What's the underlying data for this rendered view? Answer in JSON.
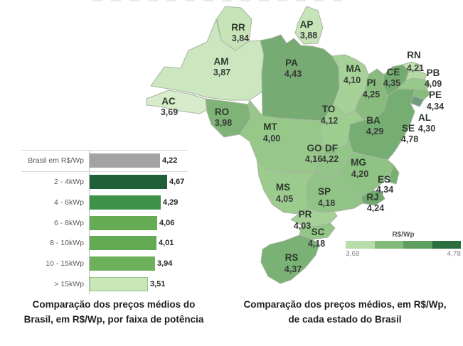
{
  "captions": {
    "bar": {
      "line1": "Comparação dos preços médios do",
      "line2": "Brasil, em R$/Wp, por faixa de potência"
    },
    "map": {
      "line1": "Comparação dos preços médios, em R$/Wp,",
      "line2": "de cada estado do Brasil"
    }
  },
  "legend": {
    "title": "R$/Wp",
    "min_label": "3,68",
    "max_label": "4,78",
    "colors": [
      "#b8dda8",
      "#81bb77",
      "#5d9e5c",
      "#2d6e3e"
    ]
  },
  "chart_data": [
    {
      "type": "bar",
      "orientation": "horizontal",
      "title": "Comparação dos preços médios do Brasil, em R$/Wp, por faixa de potência",
      "categories": [
        "Brasil em R$/Wp",
        "2 - 4kWp",
        "4 - 6kWp",
        "6 - 8kWp",
        "8 - 10kWp",
        "10 - 15kWp",
        "> 15kWp"
      ],
      "values": [
        4.22,
        4.67,
        4.29,
        4.06,
        4.01,
        3.94,
        3.51
      ],
      "value_labels": [
        "4,22",
        "4,67",
        "4,29",
        "4,06",
        "4,01",
        "3,94",
        "3,51"
      ],
      "colors": [
        "#a3a3a3",
        "#1f6038",
        "#3f9349",
        "#65ac55",
        "#63aa54",
        "#6cb15a",
        "#c9e7b8"
      ],
      "bar_borders": [
        null,
        null,
        null,
        null,
        null,
        null,
        "#93c584"
      ],
      "xlim": [
        0,
        5
      ]
    },
    {
      "type": "choropleth",
      "title": "Comparação dos preços médios, em R$/Wp, de cada estado do Brasil",
      "unit": "R$/Wp",
      "range": [
        3.68,
        4.78
      ],
      "states": [
        {
          "code": "AM",
          "value": 3.87,
          "label": "3,87",
          "fill": "#cce7bf"
        },
        {
          "code": "AC",
          "value": 3.69,
          "label": "3,69",
          "fill": "#d7ecca"
        },
        {
          "code": "RO",
          "value": 3.98,
          "label": "3,98",
          "fill": "#7fb377"
        },
        {
          "code": "RR",
          "value": 3.84,
          "label": "3,84",
          "fill": "#c7e4b8"
        },
        {
          "code": "AP",
          "value": 3.88,
          "label": "3,88",
          "fill": "#c7e4b8"
        },
        {
          "code": "PA",
          "value": 4.43,
          "label": "4,43",
          "fill": "#76ab73"
        },
        {
          "code": "MA",
          "value": 4.1,
          "label": "4,10",
          "fill": "#a6d198"
        },
        {
          "code": "PI",
          "value": 4.25,
          "label": "4,25",
          "fill": "#88bb7d"
        },
        {
          "code": "CE",
          "value": 4.35,
          "label": "4,35",
          "fill": "#74ab70"
        },
        {
          "code": "RN",
          "value": 4.21,
          "label": "4,21",
          "fill": "#c2e1b2"
        },
        {
          "code": "PB",
          "value": 4.09,
          "label": "4,09",
          "fill": "#b4d9a4"
        },
        {
          "code": "PE",
          "value": 4.34,
          "label": "4,34",
          "fill": "#98c88a"
        },
        {
          "code": "AL",
          "value": 4.3,
          "label": "4,30",
          "fill": "#8abb7d"
        },
        {
          "code": "SE",
          "value": 4.78,
          "label": "4,78",
          "fill": "#6f9c7c"
        },
        {
          "code": "BA",
          "value": 4.29,
          "label": "4,29",
          "fill": "#76ad72"
        },
        {
          "code": "TO",
          "value": 4.12,
          "label": "4,12",
          "fill": "#9ecd90"
        },
        {
          "code": "MT",
          "value": 4.0,
          "label": "4,00",
          "fill": "#97c88a"
        },
        {
          "code": "GO",
          "value": 4.16,
          "label": "4,16",
          "fill": "#92c587"
        },
        {
          "code": "DF",
          "value": 4.22,
          "label": "4,22",
          "fill": "#85ba7b"
        },
        {
          "code": "MG",
          "value": 4.2,
          "label": "4,20",
          "fill": "#8ec383"
        },
        {
          "code": "ES",
          "value": 4.34,
          "label": "4,34",
          "fill": "#77b073"
        },
        {
          "code": "MS",
          "value": 4.05,
          "label": "4,05",
          "fill": "#9ccb8e"
        },
        {
          "code": "SP",
          "value": 4.18,
          "label": "4,18",
          "fill": "#90c385"
        },
        {
          "code": "RJ",
          "value": 4.24,
          "label": "4,24",
          "fill": "#72a96e"
        },
        {
          "code": "PR",
          "value": 4.03,
          "label": "4,03",
          "fill": "#a5d097"
        },
        {
          "code": "SC",
          "value": 4.18,
          "label": "4,18",
          "fill": "#94c689"
        },
        {
          "code": "RS",
          "value": 4.37,
          "label": "4,37",
          "fill": "#7ab174"
        }
      ]
    }
  ]
}
